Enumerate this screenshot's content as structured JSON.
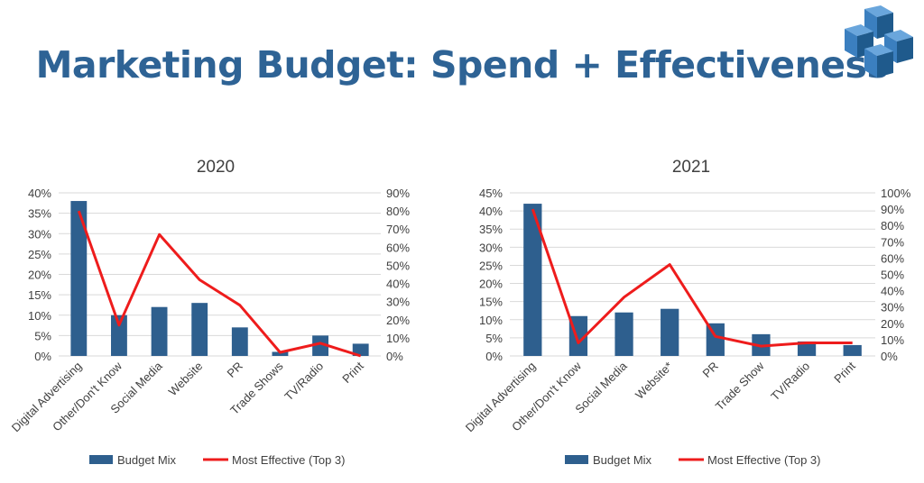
{
  "title": "Marketing Budget: Spend + Effectiveness",
  "logo": {
    "icon": "interlocking-cubes-logo",
    "colors": [
      "#1f5a8c",
      "#3b7fbf",
      "#6aa6dc"
    ]
  },
  "legend": {
    "bar_label": "Budget Mix",
    "line_label": "Most Effective (Top 3)",
    "placement": "bottom"
  },
  "colors": {
    "bar": "#2e5f8e",
    "line": "#ee1c1c",
    "title": "#2e6395",
    "grid": "#d9d9d9"
  },
  "chart_data": [
    {
      "type": "bar+line",
      "title": "2020",
      "categories": [
        "Digital Advertising",
        "Other/Don't Know",
        "Social Media",
        "Website",
        "PR",
        "Trade Shows",
        "TV/Radio",
        "Print"
      ],
      "series": [
        {
          "name": "Budget Mix",
          "type": "bar",
          "axis": "left",
          "values": [
            38,
            10,
            12,
            13,
            7,
            1,
            5,
            3
          ]
        },
        {
          "name": "Most Effective (Top 3)",
          "type": "line",
          "axis": "right",
          "values": [
            80,
            17,
            67,
            42,
            28,
            2,
            7,
            0
          ]
        }
      ],
      "y_left": {
        "min": 0,
        "max": 40,
        "step": 5,
        "unit": "%"
      },
      "y_right": {
        "min": 0,
        "max": 90,
        "step": 10,
        "unit": "%"
      },
      "grid": true
    },
    {
      "type": "bar+line",
      "title": "2021",
      "categories": [
        "Digital Advertising",
        "Other/Don't Know",
        "Social Media",
        "Website*",
        "PR",
        "Trade Show",
        "TV/Radio",
        "Print"
      ],
      "series": [
        {
          "name": "Budget Mix",
          "type": "bar",
          "axis": "left",
          "values": [
            42,
            11,
            12,
            13,
            9,
            6,
            4,
            3
          ]
        },
        {
          "name": "Most Effective (Top 3)",
          "type": "line",
          "axis": "right",
          "values": [
            90,
            8,
            36,
            56,
            12,
            6,
            8,
            8
          ]
        }
      ],
      "y_left": {
        "min": 0,
        "max": 45,
        "step": 5,
        "unit": "%"
      },
      "y_right": {
        "min": 0,
        "max": 100,
        "step": 10,
        "unit": "%"
      },
      "grid": true
    }
  ]
}
